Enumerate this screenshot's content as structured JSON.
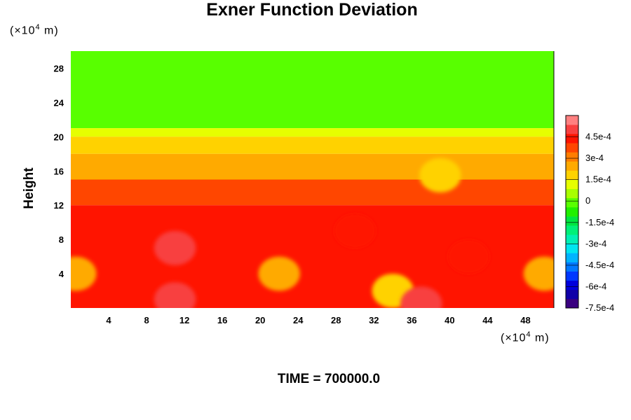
{
  "chart_data": {
    "type": "heatmap",
    "title": "Exner Function Deviation",
    "ylabel": "Height",
    "xunit": {
      "prefix": "(×10",
      "exp": "4",
      "suffix": " m)"
    },
    "yunit": {
      "prefix": "(×10",
      "exp": "4",
      "suffix": " m)"
    },
    "xlim": [
      0,
      51
    ],
    "ylim": [
      0,
      30
    ],
    "xticks": [
      4,
      8,
      12,
      16,
      20,
      24,
      28,
      32,
      36,
      40,
      44,
      48
    ],
    "yticks": [
      4,
      8,
      12,
      16,
      20,
      24,
      28
    ],
    "colorbar": {
      "range": [
        -0.00075,
        0.0006
      ],
      "labels": [
        "4.5e-4",
        "3e-4",
        "1.5e-4",
        "0",
        "-1.5e-4",
        "-3e-4",
        "-4.5e-4",
        "-6e-4",
        "-7.5e-4"
      ],
      "label_values": [
        0.00045,
        0.0003,
        0.00015,
        0,
        -0.00015,
        -0.0003,
        -0.00045,
        -0.0006,
        -0.00075
      ]
    },
    "field_levels": [
      {
        "y_range": [
          21,
          30
        ],
        "value": 1e-05
      },
      {
        "y_range": [
          20,
          21
        ],
        "value": 0.00012
      },
      {
        "y_range": [
          18,
          20
        ],
        "value": 0.00017
      },
      {
        "y_range": [
          15,
          18
        ],
        "value": 0.00027
      },
      {
        "y_range": [
          12,
          15
        ],
        "value": 0.00035
      },
      {
        "y_range": [
          0,
          12
        ],
        "value": 0.00042
      }
    ],
    "features": [
      {
        "x": 11,
        "y": 7,
        "value": 0.00048
      },
      {
        "x": 11,
        "y": 1,
        "value": 0.00052
      },
      {
        "x": 22,
        "y": 4,
        "value": 0.00022
      },
      {
        "x": 50,
        "y": 4,
        "value": 0.00022
      },
      {
        "x": 0.5,
        "y": 4,
        "value": 0.00025
      },
      {
        "x": 34,
        "y": 2,
        "value": 0.00018
      },
      {
        "x": 37,
        "y": 0.5,
        "value": 0.00052
      },
      {
        "x": 39,
        "y": 15.5,
        "value": 0.00017
      },
      {
        "x": 30,
        "y": 9,
        "value": 0.00045
      },
      {
        "x": 42,
        "y": 6,
        "value": 0.00044
      }
    ]
  },
  "footer": {
    "time_label": "TIME = 700000.0"
  }
}
